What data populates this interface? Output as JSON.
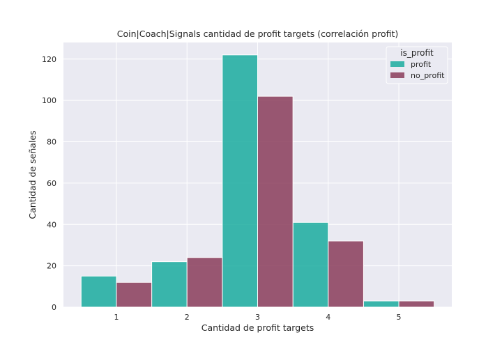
{
  "chart_data": {
    "type": "bar",
    "title": "Coin|Coach|Signals cantidad de profit targets (correlación profit)",
    "xlabel": "Cantidad de profit targets",
    "ylabel": "Cantidad de señales",
    "categories": [
      "1",
      "2",
      "3",
      "4",
      "5"
    ],
    "x": [
      1,
      2,
      3,
      4,
      5
    ],
    "xlim": [
      0.25,
      5.75
    ],
    "ylim": [
      0,
      128
    ],
    "yticks": [
      0,
      20,
      40,
      60,
      80,
      100,
      120
    ],
    "grid": true,
    "legend": {
      "title": "is_profit",
      "placement": "top-right"
    },
    "series": [
      {
        "name": "profit",
        "color": "#1aab9f",
        "values": [
          15,
          22,
          122,
          41,
          3
        ]
      },
      {
        "name": "no_profit",
        "color": "#8a3c5a",
        "values": [
          12,
          24,
          102,
          32,
          3
        ]
      }
    ]
  },
  "colors": {
    "plot_background": "#eaeaf2",
    "grid": "#ffffff",
    "bar_edge": "#ffffff"
  }
}
